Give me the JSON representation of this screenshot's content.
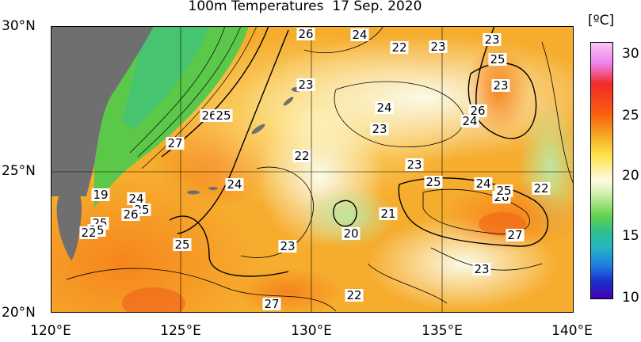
{
  "title": "100m Temperatures  17 Sep. 2020",
  "unit": "[ºC]",
  "y_ticks": [
    "30°N",
    "25°N",
    "20°N"
  ],
  "x_ticks": [
    "120°E",
    "125°E",
    "130°E",
    "135°E",
    "140°E"
  ],
  "colorbar": {
    "ticks": [
      "30",
      "25",
      "20",
      "15",
      "10"
    ]
  },
  "map": {
    "land_color": "#6f6f6f",
    "ocean_base_color": "#f6b02e",
    "contour_labels": [
      "26",
      "24",
      "22",
      "23",
      "23",
      "25",
      "23",
      "23",
      "24",
      "26",
      "24",
      "23",
      "26",
      "25",
      "27",
      "22",
      "23",
      "25",
      "24",
      "26",
      "22",
      "25",
      "24",
      "19",
      "24",
      "25",
      "26",
      "25",
      "21",
      "20",
      "25",
      "27",
      "23",
      "23",
      "22",
      "27",
      "25",
      "22"
    ]
  }
}
